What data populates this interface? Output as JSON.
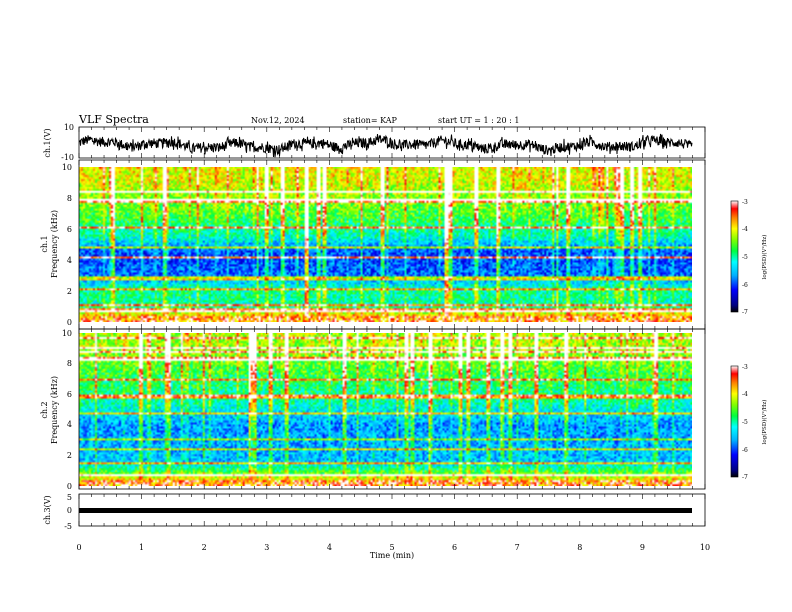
{
  "header": {
    "title": "VLF Spectra",
    "date": "Nov.12, 2024",
    "station": "station= KAP",
    "start": "start  UT =   1 : 20 : 1"
  },
  "chart_data": [
    {
      "type": "line",
      "name": "ch1-waveform",
      "ylabel": "ch.1(V)",
      "ylim": [
        -10,
        10
      ],
      "yticks": [
        "10",
        "-10"
      ],
      "xlim": [
        0,
        10
      ],
      "x_end": 9.8,
      "description_values": {
        "baseline": -1.5,
        "amplitude_range": [
          -7,
          7
        ]
      }
    },
    {
      "type": "heatmap",
      "name": "ch1-spectrogram",
      "ylabel": "ch.1\nFrequency (kHz)",
      "ylabel_lines": [
        "ch.1",
        "Frequency (kHz)"
      ],
      "ylim": [
        0,
        10
      ],
      "yticks": [
        "0",
        "2",
        "4",
        "6",
        "8",
        "10"
      ],
      "xlim": [
        0,
        10
      ],
      "x_end": 9.8,
      "freq_profile_kHz": [
        {
          "f": 0.3,
          "level": -3.5
        },
        {
          "f": 1.0,
          "level": -4.9
        },
        {
          "f": 2.0,
          "level": -4.8
        },
        {
          "f": 3.0,
          "level": -5.8
        },
        {
          "f": 4.5,
          "level": -5.9
        },
        {
          "f": 5.5,
          "level": -5.0
        },
        {
          "f": 7.0,
          "level": -4.4
        },
        {
          "f": 9.0,
          "level": -3.9
        },
        {
          "f": 10.0,
          "level": -3.8
        }
      ],
      "colorbar": {
        "label": "log(PSD)(V²/Hz)",
        "min": -7,
        "max": -3,
        "ticks": [
          "-3",
          "-4",
          "-5",
          "-6",
          "-7"
        ]
      }
    },
    {
      "type": "heatmap",
      "name": "ch2-spectrogram",
      "ylabel": "ch.2\nFrequency (kHz)",
      "ylabel_lines": [
        "ch.2",
        "Frequency (kHz)"
      ],
      "ylim": [
        0,
        10
      ],
      "yticks": [
        "0",
        "2",
        "4",
        "6",
        "8",
        "10"
      ],
      "xlim": [
        0,
        10
      ],
      "x_end": 9.8,
      "freq_profile_kHz": [
        {
          "f": 0.3,
          "level": -3.6
        },
        {
          "f": 1.5,
          "level": -5.4
        },
        {
          "f": 2.5,
          "level": -5.5
        },
        {
          "f": 4.0,
          "level": -5.6
        },
        {
          "f": 5.5,
          "level": -4.9
        },
        {
          "f": 7.0,
          "level": -4.6
        },
        {
          "f": 9.0,
          "level": -4.1
        },
        {
          "f": 10.0,
          "level": -4.0
        }
      ],
      "colorbar": {
        "label": "log(PSD)(V²/Hz)",
        "min": -7,
        "max": -3,
        "ticks": [
          "-3",
          "-4",
          "-5",
          "-6",
          "-7"
        ]
      }
    },
    {
      "type": "line",
      "name": "ch3-waveform",
      "ylabel": "ch.3(V)",
      "ylim": [
        -5,
        5
      ],
      "yticks": [
        "5",
        "0",
        "-5"
      ],
      "xlim": [
        0,
        10
      ],
      "x_end": 9.8,
      "values_constant": -1.0,
      "xlabel": "Time (min)",
      "xticks": [
        "0",
        "1",
        "2",
        "3",
        "4",
        "5",
        "6",
        "7",
        "8",
        "9",
        "10"
      ]
    }
  ],
  "colors": {
    "colormap": [
      "#00007f",
      "#0000ff",
      "#0080ff",
      "#00ffff",
      "#00ff80",
      "#00ff00",
      "#80ff00",
      "#ffff00",
      "#ff8000",
      "#ff0000",
      "#ffffff"
    ],
    "axis": "#000000",
    "trace": "#000000"
  }
}
